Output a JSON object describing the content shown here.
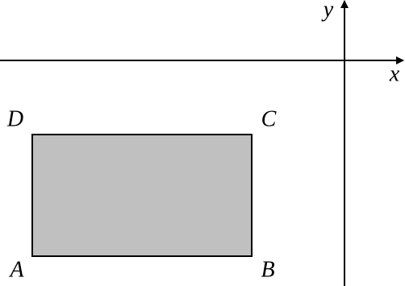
{
  "axes": {
    "x_label": "x",
    "y_label": "y"
  },
  "vertices": {
    "A": "A",
    "B": "B",
    "C": "C",
    "D": "D"
  }
}
